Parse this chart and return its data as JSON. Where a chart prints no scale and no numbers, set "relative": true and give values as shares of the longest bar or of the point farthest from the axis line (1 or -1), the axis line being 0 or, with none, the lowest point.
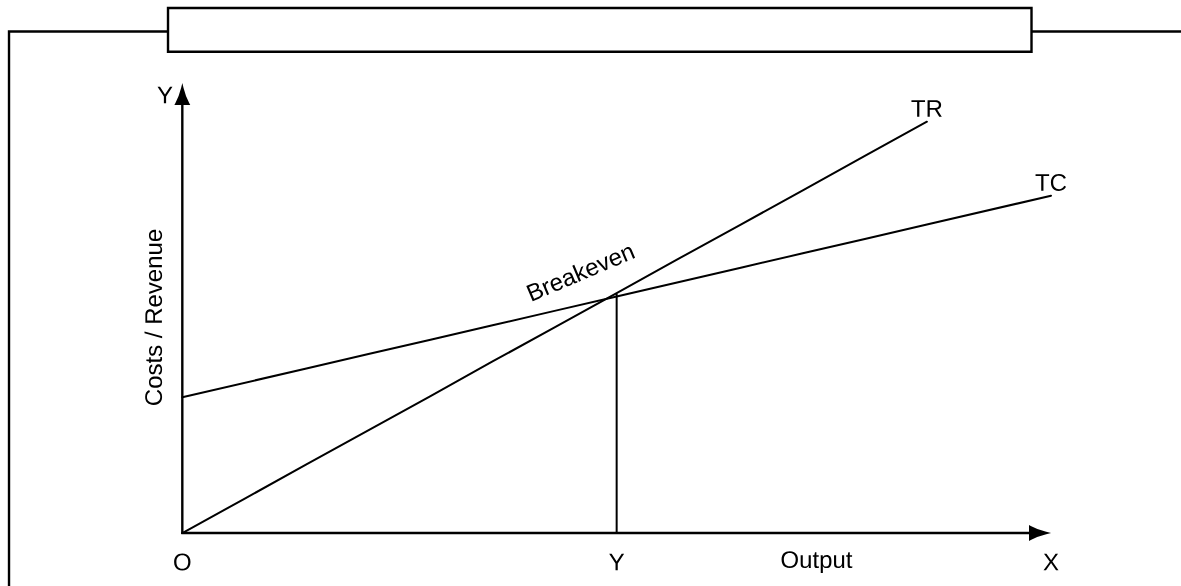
{
  "chart_data": {
    "type": "line",
    "relative": true,
    "xlabel": "Output",
    "ylabel": "Costs / Revenue",
    "categories": [
      "O",
      null,
      null,
      null,
      null,
      null,
      null,
      "Y",
      null,
      null,
      null,
      null,
      null,
      null,
      "X"
    ],
    "tick_labels": "x",
    "series": [
      {
        "name": "TR",
        "color": "#000000",
        "values": [
          0,
          0.083,
          0.167,
          0.25,
          0.333,
          0.417,
          0.5,
          0.583,
          0.667,
          0.75,
          0.833,
          0.917,
          1,
          null,
          null
        ]
      },
      {
        "name": "TC",
        "color": "#000000",
        "values": [
          0.33,
          0.365,
          0.4,
          0.435,
          0.47,
          0.505,
          0.54,
          0.575,
          0.61,
          0.645,
          0.68,
          0.715,
          0.75,
          0.785,
          0.82
        ]
      },
      {
        "color": "#000000",
        "x": [
          "Y",
          "Y"
        ],
        "values": [
          0,
          0.58
        ]
      }
    ],
    "annotations": [
      "Y",
      {
        "text": "Breakeven",
        "x": "Y",
        "y": 0.58
      }
    ]
  }
}
